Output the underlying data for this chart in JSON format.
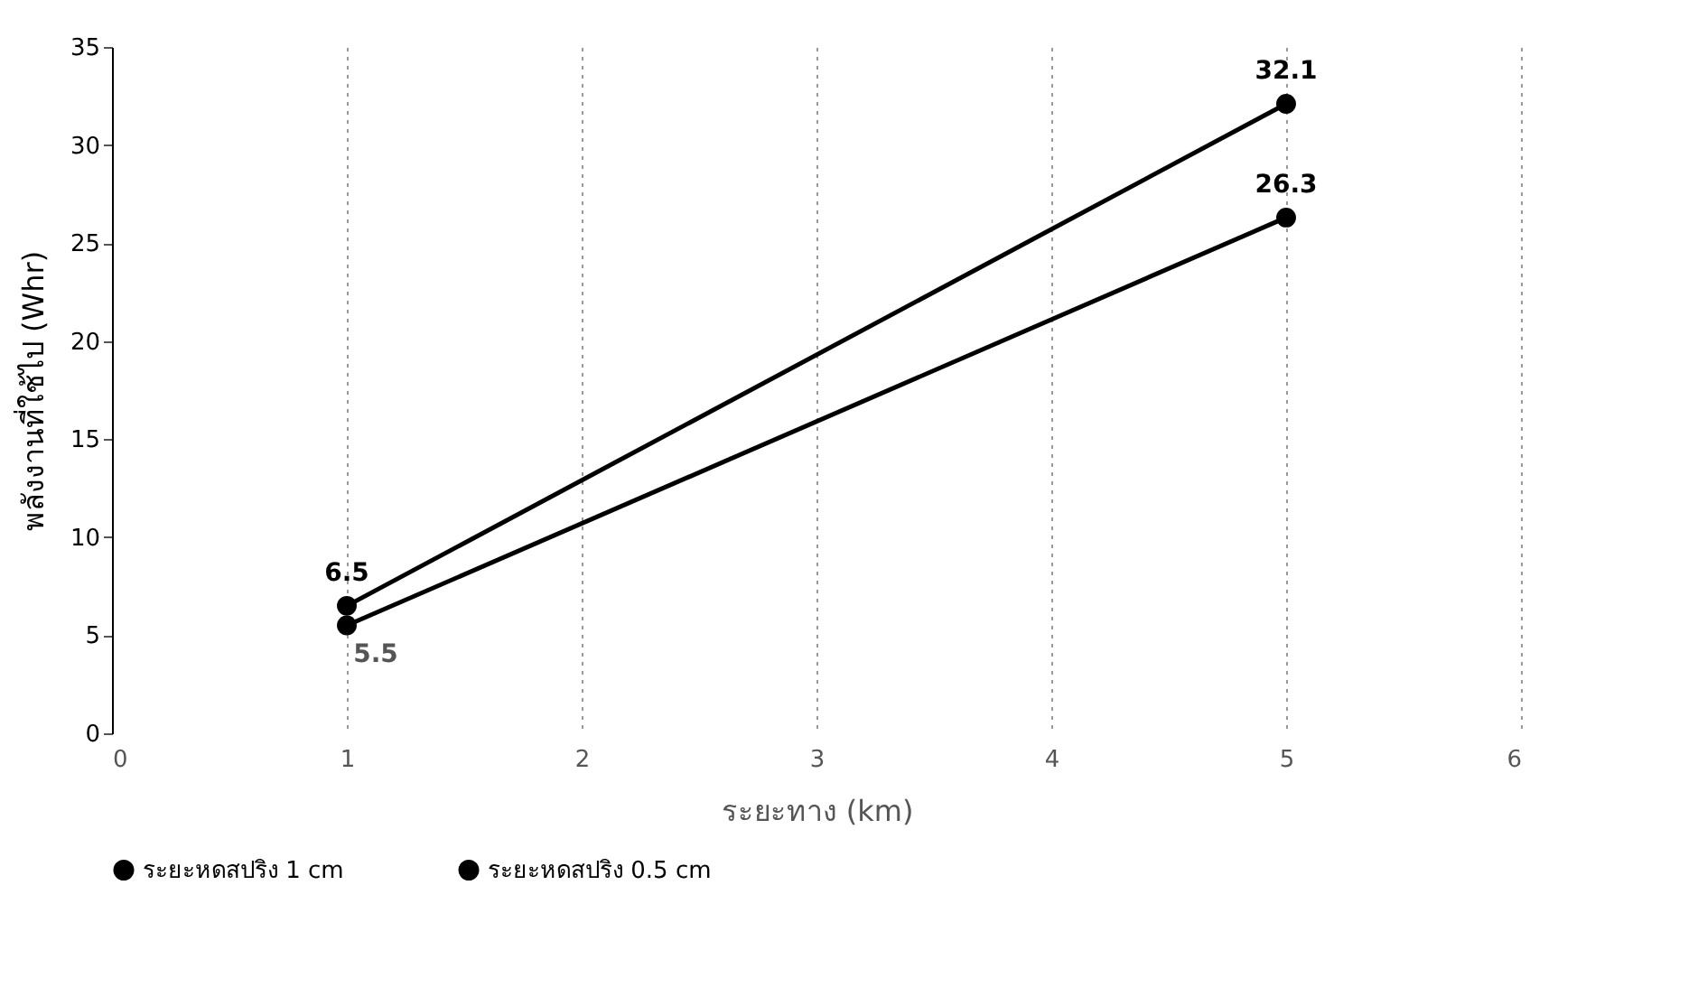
{
  "chart_data": {
    "type": "line",
    "xlabel": "ระยะทาง (km)",
    "ylabel": "พลังงานที่ใช้ไป (Whr)",
    "x": [
      1,
      5
    ],
    "series": [
      {
        "name": "ระยะหดสปริง 1 cm",
        "color": "#000000",
        "values": [
          6.5,
          32.1
        ],
        "value_labels": [
          "6.5",
          "32.1"
        ]
      },
      {
        "name": "ระยะหดสปริง 0.5 cm",
        "color": "#000000",
        "values": [
          5.5,
          26.3
        ],
        "value_labels": [
          "5.5",
          "26.3"
        ]
      }
    ],
    "xlim": [
      0,
      6
    ],
    "xticks": [
      0,
      1,
      2,
      3,
      4,
      5,
      6
    ],
    "ylim": [
      0,
      35
    ],
    "yticks": [
      0,
      5,
      10,
      15,
      20,
      25,
      30,
      35
    ],
    "grid": "x",
    "legend": "bottom",
    "marker": "circle",
    "line_style": "solid"
  }
}
